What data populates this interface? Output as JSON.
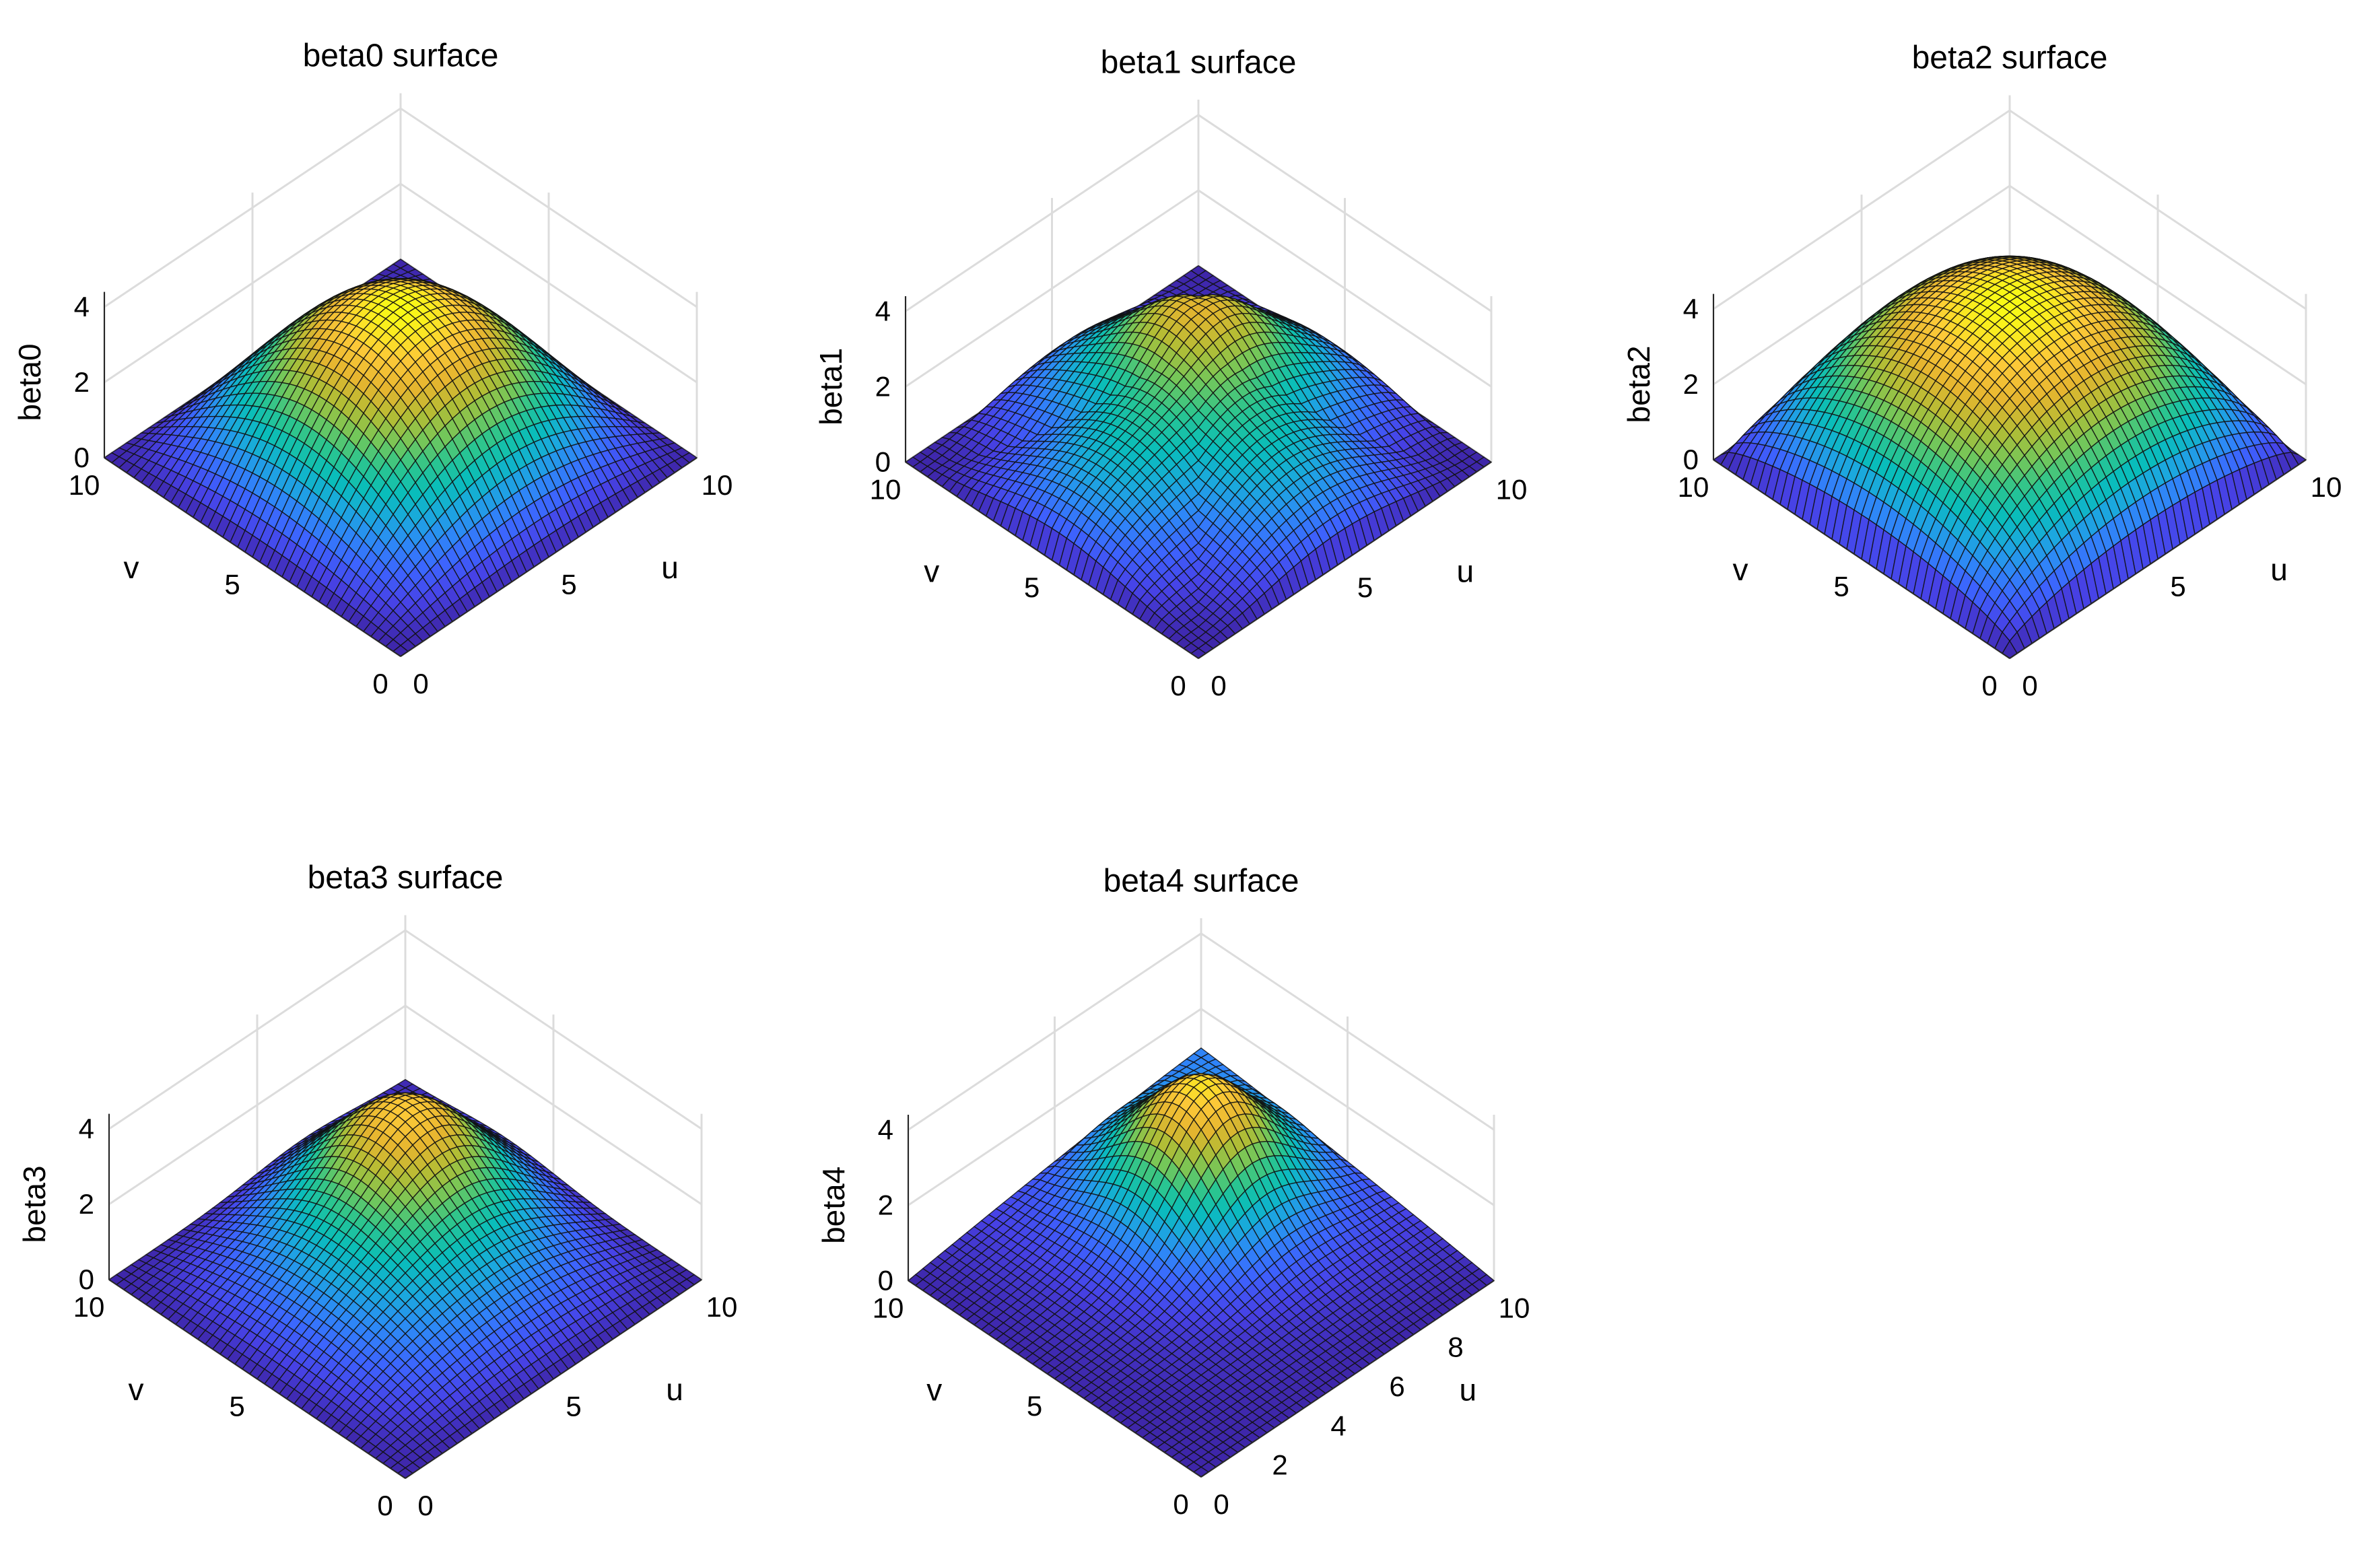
{
  "figure": {
    "layout": "2 rows x 3 columns grid, 5 panels"
  },
  "colormap": [
    "#3e26a8",
    "#4742e6",
    "#3d63fe",
    "#2e87f7",
    "#1ba8de",
    "#09bdbb",
    "#2ac590",
    "#73c75a",
    "#b2bd35",
    "#e5b52f",
    "#fcc938",
    "#f9fb15"
  ],
  "chart_data": [
    {
      "type": "surface",
      "title": "beta0 surface",
      "xlabel": "u",
      "ylabel": "v",
      "zlabel": "beta0",
      "xlim": [
        0,
        10
      ],
      "ylim": [
        0,
        10
      ],
      "zlim": [
        0,
        4
      ],
      "xticks": [
        "0",
        "5",
        "10"
      ],
      "yticks": [
        "0",
        "5",
        "10"
      ],
      "zticks": [
        "0",
        "2",
        "4"
      ],
      "surface": "dome",
      "peak_value": 4.0,
      "edge_value": 0.0,
      "view": "isometric, peak toward back corner",
      "grid": true
    },
    {
      "type": "surface",
      "title": "beta1 surface",
      "xlabel": "u",
      "ylabel": "v",
      "zlabel": "beta1",
      "xlim": [
        0,
        10
      ],
      "ylim": [
        0,
        10
      ],
      "zlim": [
        0,
        4
      ],
      "xticks": [
        "0",
        "5",
        "10"
      ],
      "yticks": [
        "0",
        "5",
        "10"
      ],
      "zticks": [
        "0",
        "2",
        "4"
      ],
      "surface": "gaussian bump on ridged base",
      "peak_value": 3.9,
      "edge_value": 0.0,
      "view": "isometric",
      "grid": true
    },
    {
      "type": "surface",
      "title": "beta2 surface",
      "xlabel": "u",
      "ylabel": "v",
      "zlabel": "beta2",
      "xlim": [
        0,
        10
      ],
      "ylim": [
        0,
        10
      ],
      "zlim": [
        0,
        4
      ],
      "xticks": [
        "0",
        "5",
        "10"
      ],
      "yticks": [
        "0",
        "5",
        "10"
      ],
      "zticks": [
        "0",
        "2",
        "4"
      ],
      "surface": "broad dome",
      "peak_value": 4.2,
      "edge_value": 0.0,
      "view": "isometric",
      "grid": true
    },
    {
      "type": "surface",
      "title": "beta3 surface",
      "xlabel": "u",
      "ylabel": "v",
      "zlabel": "beta3",
      "xlim": [
        0,
        10
      ],
      "ylim": [
        0,
        10
      ],
      "zlim": [
        0,
        4
      ],
      "xticks": [
        "0",
        "5",
        "10"
      ],
      "yticks": [
        "0",
        "5",
        "10"
      ],
      "zticks": [
        "0",
        "2",
        "4"
      ],
      "surface": "gaussian bump on low sloped base",
      "peak_value": 3.5,
      "edge_value": 0.0,
      "view": "isometric",
      "grid": true
    },
    {
      "type": "surface",
      "title": "beta4 surface",
      "xlabel": "u",
      "ylabel": "v",
      "zlabel": "beta4",
      "xlim": [
        0,
        10
      ],
      "ylim": [
        0,
        10
      ],
      "zlim": [
        0,
        4
      ],
      "xticks": [
        "0",
        "2",
        "4",
        "6",
        "8",
        "10"
      ],
      "yticks": [
        "0",
        "5",
        "10"
      ],
      "zticks": [
        "0",
        "2",
        "4"
      ],
      "surface": "gaussian bump on flat base",
      "peak_value": 3.6,
      "edge_value": 0.0,
      "view": "isometric",
      "grid": true
    }
  ]
}
